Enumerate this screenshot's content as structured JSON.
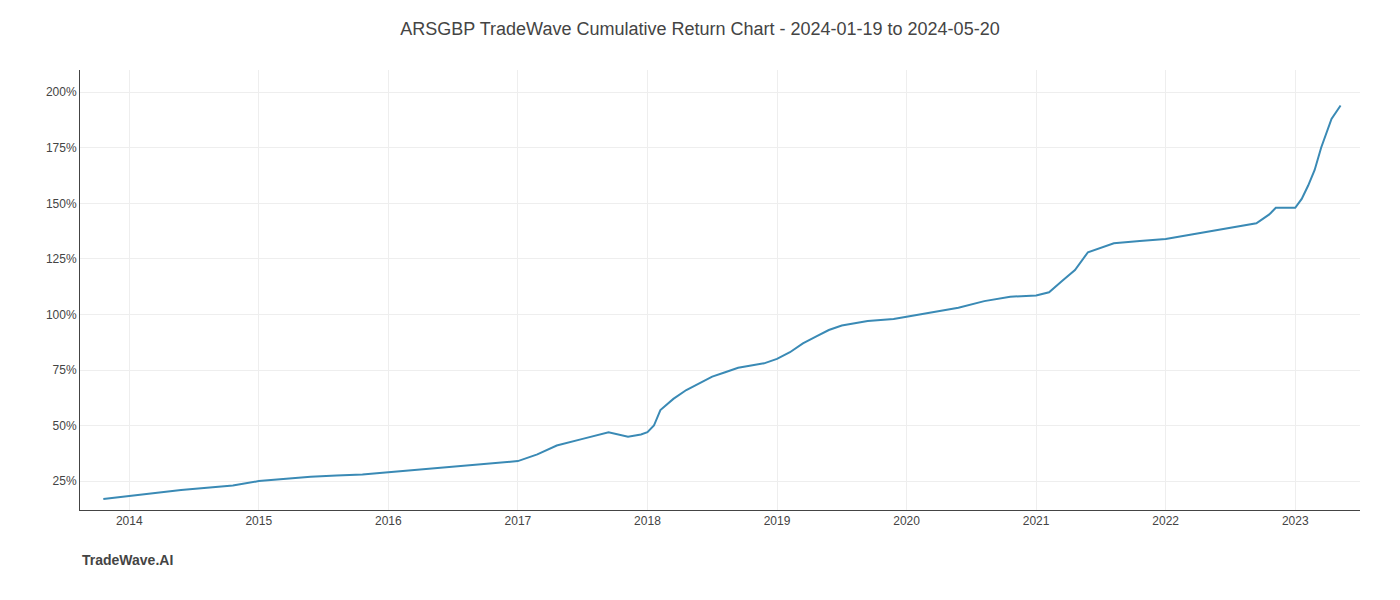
{
  "chart_data": {
    "type": "line",
    "title": "ARSGBP TradeWave Cumulative Return Chart - 2024-01-19 to 2024-05-20",
    "annotations": [
      "TradeWave.AI"
    ],
    "color": "#3a8ab5",
    "grid": true,
    "xlim": [
      2013.62,
      2023.5
    ],
    "xticks": [
      2014,
      2015,
      2016,
      2017,
      2018,
      2019,
      2020,
      2021,
      2022,
      2023
    ],
    "ylim": [
      12,
      210
    ],
    "yticks": [
      {
        "value": 25,
        "label": "25%"
      },
      {
        "value": 50,
        "label": "50%"
      },
      {
        "value": 75,
        "label": "75%"
      },
      {
        "value": 100,
        "label": "100%"
      },
      {
        "value": 125,
        "label": "125%"
      },
      {
        "value": 150,
        "label": "150%"
      },
      {
        "value": 175,
        "label": "175%"
      },
      {
        "value": 200,
        "label": "200%"
      }
    ],
    "x": [
      2013.8,
      2013.95,
      2014.0,
      2014.1,
      2014.2,
      2014.4,
      2014.6,
      2014.8,
      2015.0,
      2015.2,
      2015.4,
      2015.6,
      2015.8,
      2016.0,
      2016.2,
      2016.4,
      2016.6,
      2016.8,
      2017.0,
      2017.15,
      2017.3,
      2017.5,
      2017.7,
      2017.85,
      2017.95,
      2018.0,
      2018.05,
      2018.1,
      2018.2,
      2018.3,
      2018.4,
      2018.5,
      2018.6,
      2018.7,
      2018.8,
      2018.9,
      2018.95,
      2019.0,
      2019.1,
      2019.2,
      2019.3,
      2019.4,
      2019.5,
      2019.6,
      2019.7,
      2019.8,
      2019.9,
      2020.0,
      2020.1,
      2020.2,
      2020.3,
      2020.4,
      2020.6,
      2020.8,
      2021.0,
      2021.1,
      2021.2,
      2021.3,
      2021.4,
      2021.6,
      2021.8,
      2022.0,
      2022.2,
      2022.4,
      2022.5,
      2022.6,
      2022.7,
      2022.75,
      2022.8,
      2022.85,
      2023.0,
      2023.05,
      2023.1,
      2023.15,
      2023.2,
      2023.28,
      2023.35
    ],
    "values": [
      17,
      18,
      18.5,
      19,
      20,
      21,
      22,
      23,
      25,
      26,
      27,
      27.5,
      28,
      29,
      30,
      31,
      32,
      33,
      34,
      37,
      41,
      44,
      47,
      45,
      46,
      47,
      50,
      57,
      62,
      66,
      69,
      72,
      74,
      76,
      77,
      78,
      79,
      80,
      83,
      87,
      90,
      93,
      95,
      96,
      97,
      97.5,
      98,
      99,
      100,
      101,
      102,
      103,
      106,
      108,
      108.5,
      110,
      115,
      120,
      128,
      132,
      133,
      134,
      136,
      138,
      139,
      140,
      141,
      143,
      145,
      148,
      148,
      152,
      158,
      165,
      175,
      188,
      194
    ]
  }
}
